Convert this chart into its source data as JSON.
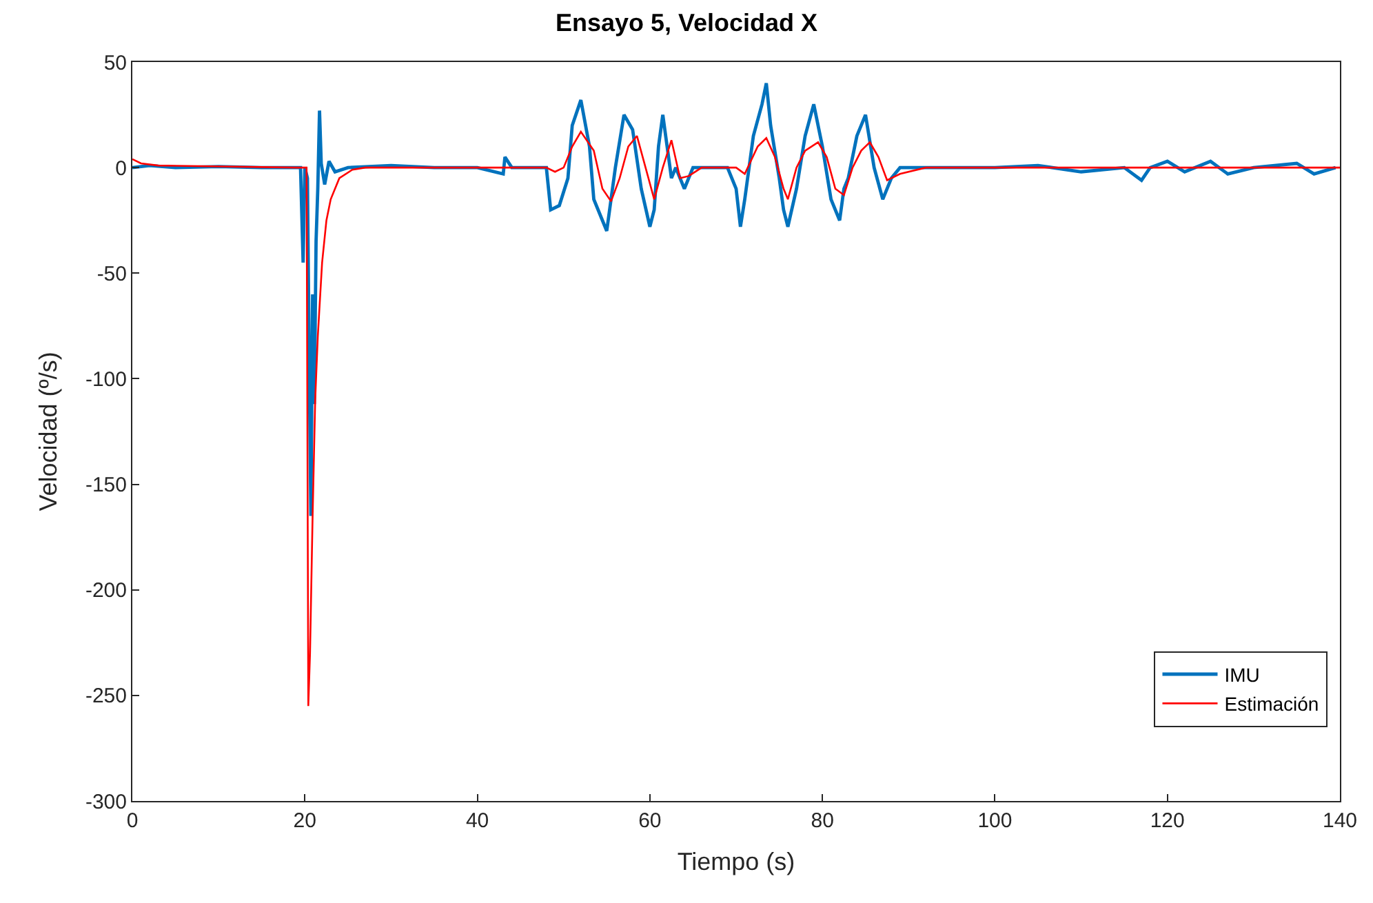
{
  "chart_data": {
    "type": "line",
    "title": "Ensayo 5, Velocidad X",
    "xlabel": "Tiempo (s)",
    "ylabel": "Velocidad (º/s)",
    "xlim": [
      0,
      140
    ],
    "xticks": [
      0,
      20,
      40,
      60,
      80,
      100,
      120,
      140
    ],
    "ylim": [
      -300,
      50
    ],
    "yticks": [
      -300,
      -250,
      -200,
      -150,
      -100,
      -50,
      0,
      50
    ],
    "legend": "bottom right",
    "line_style": "solid",
    "marker": "none",
    "series": [
      {
        "name": "IMU",
        "color": "#0072bd",
        "x": [
          0,
          2,
          5,
          10,
          15,
          19.5,
          19.8,
          20,
          20.3,
          20.5,
          20.7,
          20.9,
          21.1,
          21.3,
          21.5,
          21.7,
          21.9,
          22.3,
          22.8,
          23.5,
          25,
          30,
          35,
          40,
          43,
          43.2,
          44,
          47,
          48,
          48.5,
          49.5,
          50.5,
          51,
          52,
          53,
          53.5,
          54.5,
          55,
          56,
          57,
          58,
          59,
          60,
          60.5,
          61,
          61.5,
          62,
          62.5,
          63,
          64,
          65,
          69,
          70,
          70.5,
          71,
          72,
          73,
          73.5,
          74,
          75,
          75.5,
          76,
          77,
          78,
          79,
          80,
          81,
          82,
          82.5,
          83,
          84,
          85,
          86,
          87,
          88,
          89,
          95,
          100,
          105,
          110,
          115,
          117,
          118,
          120,
          122,
          125,
          127,
          130,
          135,
          137,
          139.5
        ],
        "values": [
          0,
          1,
          0,
          0.5,
          0,
          0,
          -45,
          0,
          -5,
          -90,
          -165,
          -60,
          -112,
          -35,
          -10,
          27,
          2,
          -8,
          3,
          -2,
          0,
          1,
          0,
          0,
          -3,
          5,
          0,
          0,
          0,
          -20,
          -18,
          -5,
          20,
          32,
          10,
          -15,
          -25,
          -30,
          0,
          25,
          18,
          -10,
          -28,
          -20,
          10,
          25,
          10,
          -5,
          0,
          -10,
          0,
          0,
          -10,
          -28,
          -15,
          15,
          30,
          40,
          20,
          -5,
          -20,
          -28,
          -10,
          15,
          30,
          10,
          -15,
          -25,
          -10,
          -5,
          15,
          25,
          0,
          -15,
          -5,
          0,
          0,
          0,
          1,
          -2,
          0,
          -6,
          0,
          3,
          -2,
          3,
          -3,
          0,
          2,
          -3,
          0
        ]
      },
      {
        "name": "Estimación",
        "color": "#ff0000",
        "x": [
          0,
          1,
          3,
          19,
          20.2,
          20.4,
          20.6,
          20.9,
          21.2,
          21.5,
          22,
          22.5,
          23,
          24,
          25.5,
          27,
          48,
          49,
          50,
          51,
          52,
          53.5,
          54.5,
          55.5,
          56.5,
          57.5,
          58.5,
          59.5,
          60.5,
          61.5,
          62.5,
          63.5,
          64.5,
          66,
          70,
          71,
          72.5,
          73.5,
          74.5,
          75.5,
          76,
          77,
          78,
          79.5,
          80.5,
          81.5,
          82.5,
          83.5,
          84.5,
          85.5,
          86.5,
          87.5,
          89,
          92,
          140
        ],
        "values": [
          4,
          2,
          1,
          0,
          0,
          -255,
          -230,
          -165,
          -110,
          -80,
          -45,
          -25,
          -15,
          -5,
          -1,
          0,
          0,
          -2,
          0,
          10,
          17,
          8,
          -10,
          -16,
          -5,
          10,
          15,
          0,
          -15,
          0,
          13,
          -5,
          -4,
          0,
          0,
          -3,
          10,
          14,
          5,
          -10,
          -15,
          0,
          8,
          12,
          5,
          -10,
          -13,
          0,
          8,
          12,
          5,
          -6,
          -3,
          0,
          0
        ]
      }
    ]
  }
}
